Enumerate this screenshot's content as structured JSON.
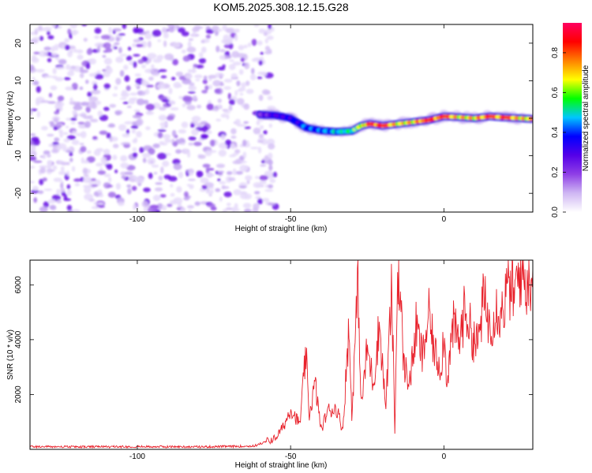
{
  "title": "KOM5.2025.308.12.15.G28",
  "chart_data": [
    {
      "type": "heatmap",
      "xlabel": "Height of straight line (km)",
      "ylabel": "Frequency (Hz)",
      "xlim": [
        -135,
        29
      ],
      "ylim": [
        -25,
        25
      ],
      "xticks": [
        -100,
        -50,
        0
      ],
      "yticks": [
        -20,
        -10,
        0,
        10,
        20
      ],
      "colorbar": {
        "label": "Normalized spectral amplitude",
        "range": [
          0,
          0.95
        ],
        "ticks": [
          "0.0",
          "0.2",
          "0.4",
          "0.6",
          "0.8"
        ],
        "colormap": [
          "#ffffff",
          "#cfb7f3",
          "#8f3fe6",
          "#5500e8",
          "#0000ff",
          "#00c6ff",
          "#00ff00",
          "#ffff00",
          "#ff8000",
          "#ff0000",
          "#ff0060"
        ]
      },
      "noise_region": {
        "x_range": [
          -135,
          -57
        ],
        "y_range": [
          -25,
          25
        ],
        "level": 0.1
      },
      "signal_track": {
        "points": [
          {
            "x": -60,
            "y": 1.0,
            "amp": 0.25
          },
          {
            "x": -55,
            "y": 0.8,
            "amp": 0.35
          },
          {
            "x": -50,
            "y": 0.0,
            "amp": 0.4
          },
          {
            "x": -45,
            "y": -2.5,
            "amp": 0.45
          },
          {
            "x": -40,
            "y": -3.3,
            "amp": 0.45
          },
          {
            "x": -35,
            "y": -3.6,
            "amp": 0.55
          },
          {
            "x": -30,
            "y": -3.4,
            "amp": 0.6
          },
          {
            "x": -27,
            "y": -2.0,
            "amp": 0.7
          },
          {
            "x": -24,
            "y": -1.5,
            "amp": 0.85
          },
          {
            "x": -20,
            "y": -2.0,
            "amp": 0.9
          },
          {
            "x": -15,
            "y": -1.5,
            "amp": 0.75
          },
          {
            "x": -10,
            "y": -1.0,
            "amp": 0.8
          },
          {
            "x": -5,
            "y": -0.5,
            "amp": 0.9
          },
          {
            "x": 0,
            "y": 0.5,
            "amp": 0.85
          },
          {
            "x": 5,
            "y": 0.3,
            "amp": 0.8
          },
          {
            "x": 10,
            "y": 0.0,
            "amp": 0.8
          },
          {
            "x": 15,
            "y": 0.5,
            "amp": 0.85
          },
          {
            "x": 20,
            "y": 0.2,
            "amp": 0.85
          },
          {
            "x": 25,
            "y": 0.0,
            "amp": 0.8
          },
          {
            "x": 29,
            "y": -0.2,
            "amp": 0.75
          }
        ]
      }
    },
    {
      "type": "line",
      "xlabel": "Height of straight line (km)",
      "ylabel": "SNR (10 * v/v)",
      "xlim": [
        -135,
        29
      ],
      "ylim": [
        0,
        6900
      ],
      "xticks": [
        -100,
        -50,
        0
      ],
      "yticks": [
        2000,
        4000,
        6000
      ],
      "color": "#e8202a",
      "series": [
        {
          "x": [
            -135,
            -120,
            -100,
            -80,
            -62,
            -55,
            -52,
            -50,
            -47,
            -45,
            -44,
            -42,
            -40,
            -38,
            -35,
            -33,
            -31,
            -30,
            -28,
            -27,
            -25,
            -23,
            -21,
            -19,
            -17,
            -16,
            -15,
            -13,
            -11,
            -9,
            -7,
            -5,
            -3,
            -1,
            0,
            1,
            3,
            5,
            7,
            9,
            11,
            13,
            15,
            17,
            19,
            21,
            23,
            25,
            27,
            29
          ],
          "y": [
            100,
            90,
            100,
            90,
            120,
            400,
            900,
            1500,
            900,
            3500,
            1200,
            2400,
            700,
            1400,
            1500,
            700,
            4400,
            1200,
            6300,
            1500,
            3700,
            2400,
            4600,
            1500,
            5800,
            600,
            6900,
            3000,
            2500,
            4500,
            3300,
            4900,
            3500,
            3000,
            4200,
            2500,
            4500,
            3900,
            5200,
            4200,
            3800,
            5500,
            4500,
            5200,
            5000,
            6000,
            5600,
            6600,
            6000,
            6600
          ]
        }
      ]
    }
  ]
}
